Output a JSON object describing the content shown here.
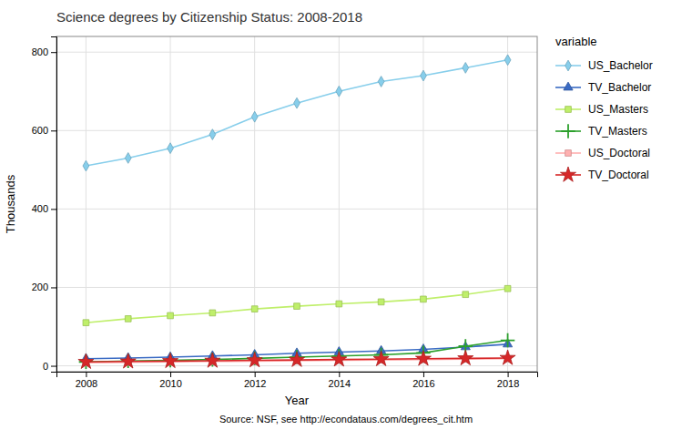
{
  "chart_data": {
    "type": "line",
    "title": "Science degrees by Citizenship Status: 2008-2018",
    "x_label": "Year",
    "y_label": "Thousands",
    "source": "Source: NSF, see http://econdataus.com/degrees_cit.htm",
    "x": [
      2008,
      2009,
      2010,
      2011,
      2012,
      2013,
      2014,
      2015,
      2016,
      2017,
      2018
    ],
    "series": [
      {
        "name": "US_Bachelor",
        "color": "#87CEEB",
        "marker": "diamond",
        "values": [
          510,
          530,
          555,
          590,
          635,
          670,
          700,
          725,
          740,
          760,
          780
        ]
      },
      {
        "name": "TV_Bachelor",
        "color": "#3A6BC4",
        "marker": "triangle",
        "values": [
          18,
          20,
          22,
          25,
          28,
          32,
          35,
          38,
          42,
          48,
          55
        ]
      },
      {
        "name": "US_Masters",
        "color": "#BFEF6A",
        "marker": "square",
        "values": [
          110,
          120,
          128,
          135,
          145,
          152,
          158,
          163,
          170,
          182,
          197
        ]
      },
      {
        "name": "TV_Masters",
        "color": "#2CA02C",
        "marker": "plus",
        "values": [
          10,
          12,
          14,
          16,
          19,
          22,
          25,
          28,
          33,
          50,
          65
        ]
      },
      {
        "name": "US_Doctoral",
        "color": "#FFB0B0",
        "marker": "square",
        "values": [
          8,
          9,
          10,
          11,
          12,
          13,
          14,
          15,
          16,
          17,
          18
        ]
      },
      {
        "name": "TV_Doctoral",
        "color": "#D62728",
        "marker": "star",
        "values": [
          10,
          11,
          12,
          13,
          14,
          15,
          16,
          17,
          18,
          19,
          20
        ]
      }
    ],
    "xlim": [
      2007.3,
      2018.7
    ],
    "xticks": [
      2008,
      2010,
      2012,
      2014,
      2016,
      2018
    ],
    "ylim": [
      -15,
      840
    ],
    "yticks": [
      0,
      200,
      400,
      600,
      800
    ],
    "grid": true,
    "legend": "right",
    "legend_title": "variable"
  }
}
